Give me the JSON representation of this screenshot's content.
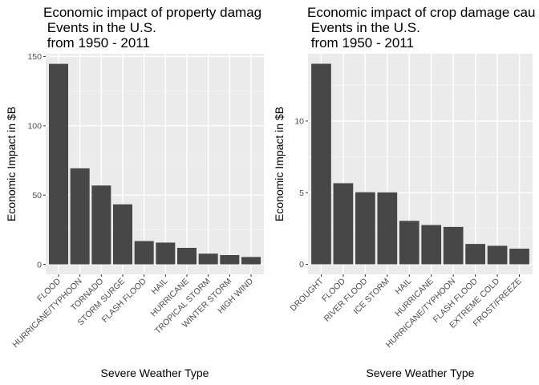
{
  "colors": {
    "panel": "#ebebeb",
    "grid_major": "#ffffff",
    "grid_minor": "#f5f5f5",
    "bar": "#474747",
    "tick": "#333333"
  },
  "chart_data": [
    {
      "type": "bar",
      "title_lines": [
        "Economic impact of property damag",
        " Events in the U.S.",
        " from 1950 - 2011"
      ],
      "xlabel": "Severe Weather Type",
      "ylabel": "Economic Impact in $B",
      "categories": [
        "FLOOD",
        "HURRICANE/TYPHOON",
        "TORNADO",
        "STORM SURGE",
        "FLASH FLOOD",
        "HAIL",
        "HURRICANE",
        "TROPICAL STORM",
        "WINTER STORM",
        "HIGH WIND"
      ],
      "values": [
        144.7,
        69.3,
        56.9,
        43.3,
        16.8,
        15.7,
        11.9,
        7.7,
        6.7,
        5.3
      ],
      "yticks": [
        0,
        50,
        100,
        150
      ],
      "ylim": [
        -7.2,
        152
      ],
      "grid": true
    },
    {
      "type": "bar",
      "title_lines": [
        "Economic impact of crop damage cau",
        " Events in the U.S.",
        " from 1950 - 2011"
      ],
      "xlabel": "Severe Weather Type",
      "ylabel": "Economic Impact in $B",
      "categories": [
        "DROUGHT",
        "FLOOD",
        "RIVER FLOOD",
        "ICE STORM",
        "HAIL",
        "HURRICANE",
        "HURRICANE/TYPHOON",
        "FLASH FLOOD",
        "EXTREME COLD",
        "FROST/FREEZE"
      ],
      "values": [
        14.0,
        5.66,
        5.03,
        5.02,
        3.03,
        2.74,
        2.61,
        1.42,
        1.29,
        1.09
      ],
      "yticks": [
        0,
        5,
        10
      ],
      "ylim": [
        -0.7,
        14.7
      ],
      "grid": true
    }
  ]
}
